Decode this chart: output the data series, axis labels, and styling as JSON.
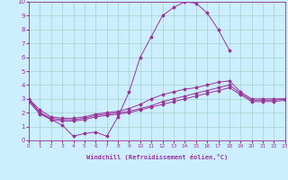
{
  "xlabel": "Windchill (Refroidissement éolien,°C)",
  "bg_color": "#cceeff",
  "line_color": "#993399",
  "grid_color": "#99ccbb",
  "line1_x": [
    0,
    1,
    2,
    3,
    4,
    5,
    6,
    7,
    8,
    9,
    10,
    11,
    12,
    13,
    14,
    15,
    16,
    17,
    18
  ],
  "line1_y": [
    3.0,
    2.0,
    1.5,
    1.1,
    0.3,
    0.5,
    0.6,
    0.3,
    1.7,
    3.5,
    6.0,
    7.5,
    9.0,
    9.6,
    10.0,
    9.9,
    9.2,
    8.0,
    6.5
  ],
  "line2_x": [
    0,
    1,
    2,
    3,
    4,
    5,
    6,
    7,
    8,
    9,
    10,
    11,
    12,
    13,
    14,
    15,
    16,
    17,
    18,
    19,
    20,
    21,
    22,
    23
  ],
  "line2_y": [
    3.0,
    2.2,
    1.7,
    1.6,
    1.6,
    1.7,
    1.9,
    2.0,
    2.1,
    2.3,
    2.6,
    3.0,
    3.3,
    3.5,
    3.7,
    3.8,
    4.0,
    4.2,
    4.3,
    3.5,
    3.0,
    3.0,
    3.0,
    3.0
  ],
  "line3_x": [
    0,
    1,
    2,
    3,
    4,
    5,
    6,
    7,
    8,
    9,
    10,
    11,
    12,
    13,
    14,
    15,
    16,
    17,
    18,
    19,
    20,
    21,
    22,
    23
  ],
  "line3_y": [
    2.9,
    2.0,
    1.6,
    1.5,
    1.5,
    1.6,
    1.8,
    1.9,
    2.0,
    2.1,
    2.3,
    2.5,
    2.8,
    3.0,
    3.2,
    3.4,
    3.6,
    3.8,
    4.0,
    3.4,
    2.9,
    2.9,
    2.9,
    3.0
  ],
  "line4_x": [
    0,
    1,
    2,
    3,
    4,
    5,
    6,
    7,
    8,
    9,
    10,
    11,
    12,
    13,
    14,
    15,
    16,
    17,
    18,
    19,
    20,
    21,
    22,
    23
  ],
  "line4_y": [
    2.8,
    1.9,
    1.5,
    1.4,
    1.4,
    1.5,
    1.7,
    1.8,
    1.9,
    2.0,
    2.2,
    2.4,
    2.6,
    2.8,
    3.0,
    3.2,
    3.4,
    3.6,
    3.8,
    3.3,
    2.8,
    2.8,
    2.8,
    2.9
  ],
  "ylim": [
    0,
    10
  ],
  "xlim": [
    0,
    23
  ]
}
